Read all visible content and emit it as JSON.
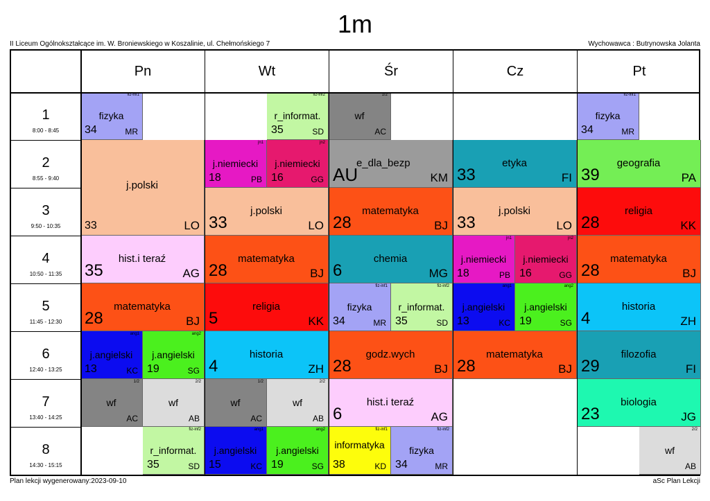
{
  "title": "1m",
  "school": "II Liceum Ogólnokształcące im. W. Broniewskiego w Koszalinie, ul. Chełmońskiego 7",
  "teacher": "Wychowawca : Butrynowska Jolanta",
  "days": [
    "Pn",
    "Wt",
    "Śr",
    "Cz",
    "Pt"
  ],
  "periods": [
    {
      "num": "1",
      "time": "8:00 - 8:45"
    },
    {
      "num": "2",
      "time": "8:55 - 9:40"
    },
    {
      "num": "3",
      "time": "9:50 - 10:35"
    },
    {
      "num": "4",
      "time": "10:50 - 11:35"
    },
    {
      "num": "5",
      "time": "11:45 - 12:30"
    },
    {
      "num": "6",
      "time": "12:40 - 13:25"
    },
    {
      "num": "7",
      "time": "13:40 - 14:25"
    },
    {
      "num": "8",
      "time": "14:30 - 15:15"
    }
  ],
  "lessons": [
    {
      "day": 0,
      "p": 0,
      "span": 1,
      "half": 0,
      "subj": "fizyka",
      "room": "34",
      "tch": "MR",
      "grp": "fiz-inf1",
      "color": "#a3a3f5"
    },
    {
      "day": 1,
      "p": 0,
      "span": 1,
      "half": 1,
      "subj": "r_informat.",
      "room": "35",
      "tch": "SD",
      "grp": "fiz-inf2",
      "color": "#c2f7a3"
    },
    {
      "day": 2,
      "p": 0,
      "span": 1,
      "half": 0,
      "subj": "wf",
      "room": "",
      "tch": "AC",
      "grp": "1/2",
      "color": "#848484"
    },
    {
      "day": 4,
      "p": 0,
      "span": 1,
      "half": 0,
      "subj": "fizyka",
      "room": "34",
      "tch": "MR",
      "grp": "fiz-inf1",
      "color": "#a3a3f5"
    },
    {
      "day": 0,
      "p": 1,
      "span": 2,
      "half": -1,
      "subj": "j.polski",
      "room": "33",
      "tch": "LO",
      "grp": "",
      "color": "#f9bf9b"
    },
    {
      "day": 1,
      "p": 1,
      "span": 1,
      "half": 0,
      "subj": "j.niemiecki",
      "room": "18",
      "tch": "PB",
      "grp": "jn1",
      "color": "#e619c4"
    },
    {
      "day": 1,
      "p": 1,
      "span": 1,
      "half": 1,
      "subj": "j.niemiecki",
      "room": "16",
      "tch": "GG",
      "grp": "jn2",
      "color": "#e6196e"
    },
    {
      "day": 2,
      "p": 1,
      "span": 1,
      "half": -1,
      "subj": "e_dla_bezp",
      "room": "AU",
      "tch": "KM",
      "grp": "",
      "color": "#9b9b9b"
    },
    {
      "day": 3,
      "p": 1,
      "span": 1,
      "half": -1,
      "subj": "etyka",
      "room": "33",
      "tch": "FI",
      "grp": "",
      "color": "#19a0b4"
    },
    {
      "day": 4,
      "p": 1,
      "span": 1,
      "half": -1,
      "subj": "geografia",
      "room": "39",
      "tch": "PA",
      "grp": "",
      "color": "#74ee55"
    },
    {
      "day": 1,
      "p": 2,
      "span": 1,
      "half": -1,
      "subj": "j.polski",
      "room": "33",
      "tch": "LO",
      "grp": "",
      "color": "#f9bf9b"
    },
    {
      "day": 2,
      "p": 2,
      "span": 1,
      "half": -1,
      "subj": "matematyka",
      "room": "28",
      "tch": "BJ",
      "grp": "",
      "color": "#fd5116"
    },
    {
      "day": 3,
      "p": 2,
      "span": 1,
      "half": -1,
      "subj": "j.polski",
      "room": "33",
      "tch": "LO",
      "grp": "",
      "color": "#f9bf9b"
    },
    {
      "day": 4,
      "p": 2,
      "span": 1,
      "half": -1,
      "subj": "religia",
      "room": "28",
      "tch": "KK",
      "grp": "",
      "color": "#fd0c0c"
    },
    {
      "day": 0,
      "p": 3,
      "span": 1,
      "half": -1,
      "subj": "hist.i teraź",
      "room": "35",
      "tch": "AG",
      "grp": "",
      "color": "#fdcdfd"
    },
    {
      "day": 1,
      "p": 3,
      "span": 1,
      "half": -1,
      "subj": "matematyka",
      "room": "28",
      "tch": "BJ",
      "grp": "",
      "color": "#fd5116"
    },
    {
      "day": 2,
      "p": 3,
      "span": 1,
      "half": -1,
      "subj": "chemia",
      "room": "6",
      "tch": "MG",
      "grp": "",
      "color": "#19a0b4"
    },
    {
      "day": 3,
      "p": 3,
      "span": 1,
      "half": 0,
      "subj": "j.niemiecki",
      "room": "18",
      "tch": "PB",
      "grp": "jn1",
      "color": "#e619c4"
    },
    {
      "day": 3,
      "p": 3,
      "span": 1,
      "half": 1,
      "subj": "j.niemiecki",
      "room": "16",
      "tch": "GG",
      "grp": "jn2",
      "color": "#e6196e"
    },
    {
      "day": 4,
      "p": 3,
      "span": 1,
      "half": -1,
      "subj": "matematyka",
      "room": "28",
      "tch": "BJ",
      "grp": "",
      "color": "#fd5116"
    },
    {
      "day": 0,
      "p": 4,
      "span": 1,
      "half": -1,
      "subj": "matematyka",
      "room": "28",
      "tch": "BJ",
      "grp": "",
      "color": "#fd5116"
    },
    {
      "day": 1,
      "p": 4,
      "span": 1,
      "half": -1,
      "subj": "religia",
      "room": "5",
      "tch": "KK",
      "grp": "",
      "color": "#fd0c0c"
    },
    {
      "day": 2,
      "p": 4,
      "span": 1,
      "half": 0,
      "subj": "fizyka",
      "room": "34",
      "tch": "MR",
      "grp": "fiz-inf1",
      "color": "#a3a3f5"
    },
    {
      "day": 2,
      "p": 4,
      "span": 1,
      "half": 1,
      "subj": "r_informat.",
      "room": "35",
      "tch": "SD",
      "grp": "fiz-inf2",
      "color": "#c2f7a3"
    },
    {
      "day": 3,
      "p": 4,
      "span": 1,
      "half": 0,
      "subj": "j.angielski",
      "room": "13",
      "tch": "KC",
      "grp": "ang1",
      "color": "#0c0cf0"
    },
    {
      "day": 3,
      "p": 4,
      "span": 1,
      "half": 1,
      "subj": "j.angielski",
      "room": "19",
      "tch": "SG",
      "grp": "ang2",
      "color": "#4bf01e"
    },
    {
      "day": 4,
      "p": 4,
      "span": 1,
      "half": -1,
      "subj": "historia",
      "room": "4",
      "tch": "ZH",
      "grp": "",
      "color": "#0cc4f8"
    },
    {
      "day": 0,
      "p": 5,
      "span": 1,
      "half": 0,
      "subj": "j.angielski",
      "room": "13",
      "tch": "KC",
      "grp": "ang1",
      "color": "#0c0cf0"
    },
    {
      "day": 0,
      "p": 5,
      "span": 1,
      "half": 1,
      "subj": "j.angielski",
      "room": "19",
      "tch": "SG",
      "grp": "ang2",
      "color": "#4bf01e"
    },
    {
      "day": 1,
      "p": 5,
      "span": 1,
      "half": -1,
      "subj": "historia",
      "room": "4",
      "tch": "ZH",
      "grp": "",
      "color": "#0cc4f8"
    },
    {
      "day": 2,
      "p": 5,
      "span": 1,
      "half": -1,
      "subj": "godz.wych",
      "room": "28",
      "tch": "BJ",
      "grp": "",
      "color": "#fd5116"
    },
    {
      "day": 3,
      "p": 5,
      "span": 1,
      "half": -1,
      "subj": "matematyka",
      "room": "28",
      "tch": "BJ",
      "grp": "",
      "color": "#fd5116"
    },
    {
      "day": 4,
      "p": 5,
      "span": 1,
      "half": -1,
      "subj": "filozofia",
      "room": "29",
      "tch": "FI",
      "grp": "",
      "color": "#19a0b4"
    },
    {
      "day": 0,
      "p": 6,
      "span": 1,
      "half": 0,
      "subj": "wf",
      "room": "",
      "tch": "AC",
      "grp": "1/2",
      "color": "#848484"
    },
    {
      "day": 0,
      "p": 6,
      "span": 1,
      "half": 1,
      "subj": "wf",
      "room": "",
      "tch": "AB",
      "grp": "2/2",
      "color": "#dcdcdc"
    },
    {
      "day": 1,
      "p": 6,
      "span": 1,
      "half": 0,
      "subj": "wf",
      "room": "",
      "tch": "AC",
      "grp": "1/2",
      "color": "#848484"
    },
    {
      "day": 1,
      "p": 6,
      "span": 1,
      "half": 1,
      "subj": "wf",
      "room": "",
      "tch": "AB",
      "grp": "2/2",
      "color": "#dcdcdc"
    },
    {
      "day": 2,
      "p": 6,
      "span": 1,
      "half": -1,
      "subj": "hist.i teraź",
      "room": "6",
      "tch": "AG",
      "grp": "",
      "color": "#fdcdfd"
    },
    {
      "day": 4,
      "p": 6,
      "span": 1,
      "half": -1,
      "subj": "biologia",
      "room": "23",
      "tch": "JG",
      "grp": "",
      "color": "#1ef8b0"
    },
    {
      "day": 0,
      "p": 7,
      "span": 1,
      "half": 1,
      "subj": "r_informat.",
      "room": "35",
      "tch": "SD",
      "grp": "fiz-inf2",
      "color": "#c2f7a3"
    },
    {
      "day": 1,
      "p": 7,
      "span": 1,
      "half": 0,
      "subj": "j.angielski",
      "room": "15",
      "tch": "KC",
      "grp": "ang1",
      "color": "#0c0cf0"
    },
    {
      "day": 1,
      "p": 7,
      "span": 1,
      "half": 1,
      "subj": "j.angielski",
      "room": "19",
      "tch": "SG",
      "grp": "ang2",
      "color": "#4bf01e"
    },
    {
      "day": 2,
      "p": 7,
      "span": 1,
      "half": 0,
      "subj": "informatyka",
      "room": "38",
      "tch": "KD",
      "grp": "fiz-inf1",
      "color": "#fdfd0c"
    },
    {
      "day": 2,
      "p": 7,
      "span": 1,
      "half": 1,
      "subj": "fizyka",
      "room": "34",
      "tch": "MR",
      "grp": "fiz-inf2",
      "color": "#a3a3f5"
    },
    {
      "day": 4,
      "p": 7,
      "span": 1,
      "half": 1,
      "subj": "wf",
      "room": "",
      "tch": "AB",
      "grp": "2/2",
      "color": "#dcdcdc"
    }
  ],
  "footer_left": "Plan lekcji wygenerowany:2023-09-10",
  "footer_right": "aSc Plan Lekcji"
}
